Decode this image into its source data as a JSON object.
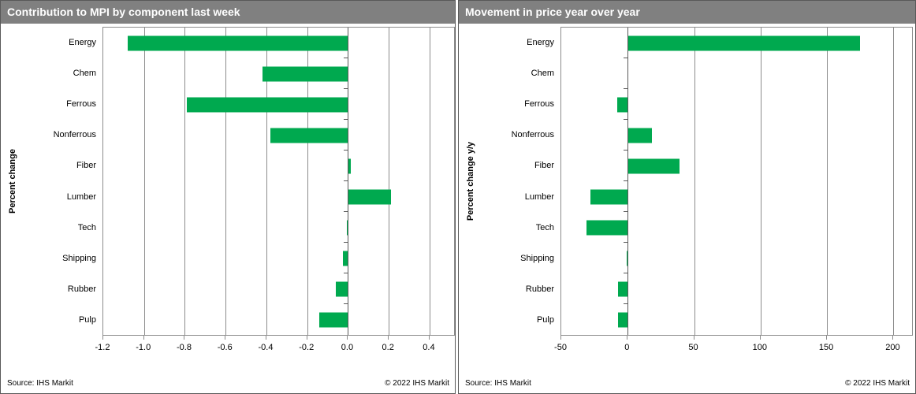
{
  "colors": {
    "header_bg": "#808080",
    "header_text": "#ffffff",
    "bar": "#00A94F",
    "grid": "#8c8c8c",
    "axis": "#595959",
    "panel_border": "#595959"
  },
  "chart_data": [
    {
      "type": "bar",
      "orientation": "horizontal",
      "title": "Contribution to MPI by component last week",
      "ylabel": "Percent change",
      "categories": [
        "Energy",
        "Chem",
        "Ferrous",
        "Nonferrous",
        "Fiber",
        "Lumber",
        "Tech",
        "Shipping",
        "Rubber",
        "Pulp"
      ],
      "values": [
        -1.08,
        -0.42,
        -0.79,
        -0.38,
        0.015,
        0.21,
        -0.005,
        -0.025,
        -0.06,
        -0.14
      ],
      "xticks": [
        -1.2,
        -1.0,
        -0.8,
        -0.6,
        -0.4,
        -0.2,
        0.0,
        0.2,
        0.4
      ],
      "xtick_labels": [
        "-1.2",
        "-1.0",
        "-0.8",
        "-0.6",
        "-0.4",
        "-0.2",
        "0.0",
        "0.2",
        "0.4"
      ],
      "xlim": [
        -1.2,
        0.52
      ],
      "grid": true,
      "legend": false,
      "source": "Source: IHS Markit",
      "copyright": "© 2022 IHS Markit"
    },
    {
      "type": "bar",
      "orientation": "horizontal",
      "title": "Movement in price year over year",
      "ylabel": "Percent change y/y",
      "categories": [
        "Energy",
        "Chem",
        "Ferrous",
        "Nonferrous",
        "Fiber",
        "Lumber",
        "Tech",
        "Shipping",
        "Rubber",
        "Pulp"
      ],
      "values": [
        175,
        0,
        -8,
        18,
        39,
        -28,
        -31,
        -1,
        -7,
        -7
      ],
      "xticks": [
        -50,
        0,
        50,
        100,
        150,
        200
      ],
      "xtick_labels": [
        "-50",
        "0",
        "50",
        "100",
        "150",
        "200"
      ],
      "xlim": [
        -50,
        214
      ],
      "grid": true,
      "legend": false,
      "source": "Source: IHS Markit",
      "copyright": "© 2022 IHS Markit"
    }
  ]
}
